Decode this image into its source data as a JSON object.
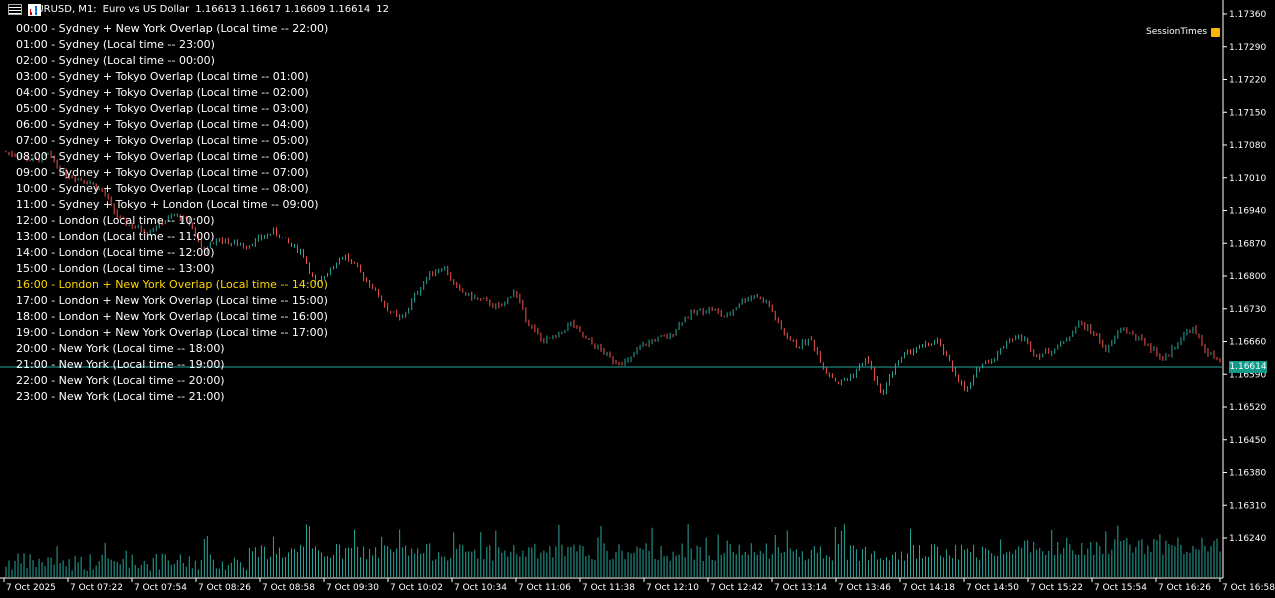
{
  "header": {
    "symbol": "EURUSD, M1:",
    "description": "Euro vs US Dollar",
    "ohlc": "1.16613 1.16617 1.16609 1.16614",
    "volume": "12"
  },
  "sessions": [
    "00:00 - Sydney + New York Overlap (Local time -- 22:00)",
    "01:00 - Sydney (Local time -- 23:00)",
    "02:00 - Sydney (Local time -- 00:00)",
    "03:00 - Sydney + Tokyo Overlap (Local time -- 01:00)",
    "04:00 - Sydney + Tokyo Overlap (Local time -- 02:00)",
    "05:00 - Sydney + Tokyo Overlap (Local time -- 03:00)",
    "06:00 - Sydney + Tokyo Overlap (Local time -- 04:00)",
    "07:00 - Sydney + Tokyo Overlap (Local time -- 05:00)",
    "08:00 - Sydney + Tokyo Overlap (Local time -- 06:00)",
    "09:00 - Sydney + Tokyo Overlap (Local time -- 07:00)",
    "10:00 - Sydney + Tokyo Overlap (Local time -- 08:00)",
    "11:00 - Sydney + Tokyo + London (Local time -- 09:00)",
    "12:00 - London (Local time -- 10:00)",
    "13:00 - London (Local time -- 11:00)",
    "14:00 - London (Local time -- 12:00)",
    "15:00 - London (Local time -- 13:00)",
    "16:00 - London + New York Overlap (Local time -- 14:00)",
    "17:00 - London + New York Overlap (Local time -- 15:00)",
    "18:00 - London + New York Overlap (Local time -- 16:00)",
    "19:00 - London + New York Overlap (Local time -- 17:00)",
    "20:00 - New York (Local time -- 18:00)",
    "21:00 - New York (Local time -- 19:00)",
    "22:00 - New York (Local time -- 20:00)",
    "23:00 - New York (Local time -- 21:00)"
  ],
  "highlighted_session_index": 16,
  "indicator_label": "SessionTimes",
  "current_price": "1.16614",
  "colors": {
    "background": "#000000",
    "bull": "#26a69a",
    "bear": "#ef5350",
    "volume": "#26a69a",
    "price_line": "#26a69a",
    "highlight": "#ffd700",
    "axis": "#ffffff"
  },
  "chart_data": {
    "type": "candlestick",
    "y_ticks": [
      "1.17360",
      "1.17290",
      "1.17220",
      "1.17150",
      "1.17080",
      "1.17010",
      "1.16940",
      "1.16870",
      "1.16800",
      "1.16730",
      "1.16660",
      "1.16590",
      "1.16520",
      "1.16450",
      "1.16380",
      "1.16310",
      "1.16240"
    ],
    "y_range": [
      1.1621,
      1.1739
    ],
    "x_ticks": [
      "7 Oct 2025",
      "7 Oct 07:22",
      "7 Oct 07:54",
      "7 Oct 08:26",
      "7 Oct 08:58",
      "7 Oct 09:30",
      "7 Oct 10:02",
      "7 Oct 10:34",
      "7 Oct 11:06",
      "7 Oct 11:38",
      "7 Oct 12:10",
      "7 Oct 12:42",
      "7 Oct 13:14",
      "7 Oct 13:46",
      "7 Oct 14:18",
      "7 Oct 14:50",
      "7 Oct 15:22",
      "7 Oct 15:54",
      "7 Oct 16:26",
      "7 Oct 16:58"
    ],
    "close_path": [
      1.17065,
      1.17055,
      1.17045,
      1.1706,
      1.1702,
      1.1701,
      1.17,
      1.16975,
      1.1692,
      1.16905,
      1.16895,
      1.16915,
      1.1693,
      1.16915,
      1.1685,
      1.1688,
      1.1687,
      1.16865,
      1.1688,
      1.16895,
      1.1687,
      1.1685,
      1.16775,
      1.1682,
      1.16845,
      1.1681,
      1.16775,
      1.1673,
      1.16705,
      1.1676,
      1.16805,
      1.1682,
      1.1677,
      1.16755,
      1.16745,
      1.1673,
      1.1677,
      1.167,
      1.1666,
      1.1667,
      1.167,
      1.16665,
      1.16645,
      1.1662,
      1.16615,
      1.1665,
      1.16665,
      1.1667,
      1.1671,
      1.16725,
      1.1673,
      1.1671,
      1.16745,
      1.1676,
      1.1674,
      1.1668,
      1.1665,
      1.16665,
      1.166,
      1.1657,
      1.1659,
      1.16625,
      1.16545,
      1.1661,
      1.1664,
      1.1665,
      1.1666,
      1.16605,
      1.1655,
      1.1661,
      1.16625,
      1.16665,
      1.1667,
      1.1663,
      1.1664,
      1.1666,
      1.167,
      1.1668,
      1.1664,
      1.1669,
      1.1667,
      1.1665,
      1.1662,
      1.1666,
      1.1669,
      1.1664,
      1.16614
    ]
  }
}
